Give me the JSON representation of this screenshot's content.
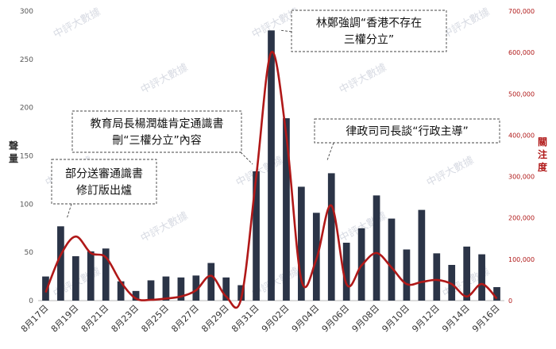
{
  "chart_data": {
    "type": "bar+line",
    "categories": [
      "8月17日",
      "8月18日",
      "8月19日",
      "8月20日",
      "8月21日",
      "8月22日",
      "8月23日",
      "8月24日",
      "8月25日",
      "8月26日",
      "8月27日",
      "8月28日",
      "8月29日",
      "8月30日",
      "8月31日",
      "9月01日",
      "9月02日",
      "9月03日",
      "9月04日",
      "9月05日",
      "9月06日",
      "9月07日",
      "9月08日",
      "9月09日",
      "9月10日",
      "9月11日",
      "9月12日",
      "9月13日",
      "9月14日",
      "9月15日",
      "9月16日"
    ],
    "x_tick_labels": [
      "8月17日",
      "8月19日",
      "8月21日",
      "8月23日",
      "8月25日",
      "8月27日",
      "8月29日",
      "8月31日",
      "9月02日",
      "9月04日",
      "9月06日",
      "9月08日",
      "9月10日",
      "9月12日",
      "9月14日",
      "9月16日"
    ],
    "series": [
      {
        "axis": "left",
        "kind": "bar",
        "color": "#2b3447",
        "values": [
          25,
          77,
          46,
          51,
          54,
          20,
          10,
          21,
          25,
          24,
          26,
          39,
          24,
          16,
          134,
          280,
          189,
          118,
          91,
          132,
          60,
          75,
          109,
          85,
          53,
          94,
          49,
          37,
          56,
          48,
          14
        ]
      },
      {
        "axis": "right",
        "kind": "line",
        "color": "#b01818",
        "values": [
          20000,
          110000,
          155000,
          115000,
          105000,
          45000,
          5000,
          2000,
          5000,
          10000,
          25000,
          60000,
          10000,
          5000,
          300000,
          600000,
          400000,
          50000,
          100000,
          230000,
          40000,
          85000,
          115000,
          80000,
          40000,
          45000,
          50000,
          40000,
          10000,
          40000,
          5000
        ]
      }
    ],
    "ylabel_left": "聲量",
    "ylabel_right": "關注度",
    "ylim_left": [
      0,
      300
    ],
    "ylim_right": [
      0,
      700000
    ],
    "yticks_left": [
      "0",
      "50",
      "100",
      "150",
      "200",
      "250",
      "300"
    ],
    "yticks_right": [
      "0",
      "100,000",
      "200,000",
      "300,000",
      "400,000",
      "500,000",
      "600,000",
      "700,000"
    ],
    "grid": false,
    "watermark": "中評大數據",
    "annotations": [
      {
        "lines": [
          "部分送審通識書",
          "修訂版出爐"
        ]
      },
      {
        "lines": [
          "教育局長楊潤雄肯定通識書",
          "刪“三權分立”內容"
        ]
      },
      {
        "lines": [
          "林鄭強調“香港不存在",
          "三權分立”"
        ]
      },
      {
        "lines": [
          "律政司司長談“行政主導”"
        ]
      }
    ]
  }
}
